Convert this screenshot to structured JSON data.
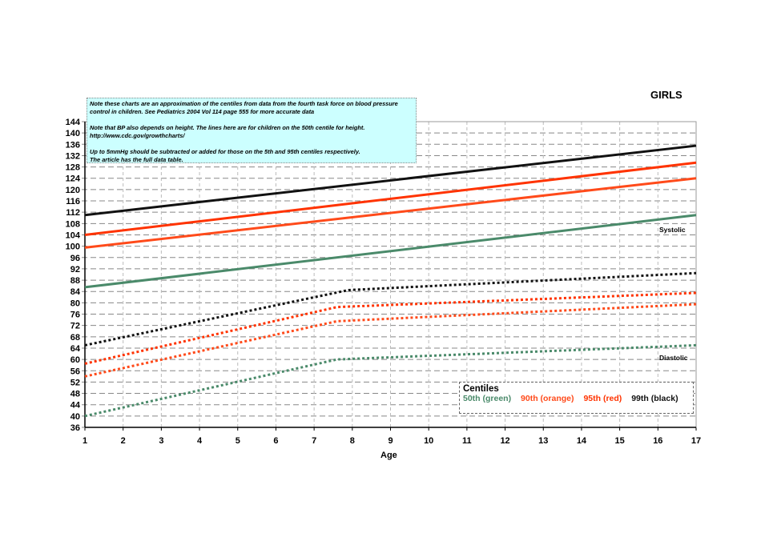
{
  "chart_data": {
    "type": "line",
    "title": "GIRLS",
    "xlabel": "Age",
    "ylabel": "",
    "xlim": [
      1,
      17
    ],
    "ylim": [
      36,
      144
    ],
    "x_ticks": [
      1,
      2,
      3,
      4,
      5,
      6,
      7,
      8,
      9,
      10,
      11,
      12,
      13,
      14,
      15,
      16,
      17
    ],
    "y_ticks": [
      36,
      40,
      44,
      48,
      52,
      56,
      60,
      64,
      68,
      72,
      76,
      80,
      84,
      88,
      92,
      96,
      100,
      104,
      108,
      112,
      116,
      120,
      124,
      128,
      132,
      136,
      140,
      144
    ],
    "grid": true,
    "legend_placement": "bottom-right",
    "legend": {
      "title": "Centiles",
      "items": [
        {
          "label": "50th (green)",
          "color": "#4a8a6a"
        },
        {
          "label": "90th (orange)",
          "color": "#ff4a1a"
        },
        {
          "label": "95th (red)",
          "color": "#ff3300"
        },
        {
          "label": "99th (black)",
          "color": "#111111"
        }
      ]
    },
    "annotations": {
      "systolic": "Systolic",
      "diastolic": "Diastolic"
    },
    "series": [
      {
        "group": "systolic",
        "centile": "99th",
        "color": "#111111",
        "style": "solid",
        "points": [
          [
            1,
            111
          ],
          [
            17,
            135.5
          ]
        ]
      },
      {
        "group": "systolic",
        "centile": "95th",
        "color": "#ff3300",
        "style": "solid",
        "points": [
          [
            1,
            104
          ],
          [
            17,
            129.5
          ]
        ]
      },
      {
        "group": "systolic",
        "centile": "90th",
        "color": "#ff4a1a",
        "style": "solid",
        "points": [
          [
            1,
            99.5
          ],
          [
            17,
            124
          ]
        ]
      },
      {
        "group": "systolic",
        "centile": "50th",
        "color": "#4a8a6a",
        "style": "solid",
        "points": [
          [
            1,
            85.5
          ],
          [
            17,
            111
          ]
        ]
      },
      {
        "group": "diastolic",
        "centile": "99th",
        "color": "#111111",
        "style": "dotted",
        "points": [
          [
            1,
            65
          ],
          [
            7.9,
            84.5
          ],
          [
            17,
            90.5
          ]
        ]
      },
      {
        "group": "diastolic",
        "centile": "95th",
        "color": "#ff3300",
        "style": "dotted",
        "points": [
          [
            1,
            58.5
          ],
          [
            7.6,
            78.5
          ],
          [
            17,
            83.5
          ]
        ]
      },
      {
        "group": "diastolic",
        "centile": "90th",
        "color": "#ff4a1a",
        "style": "dotted",
        "points": [
          [
            1,
            54
          ],
          [
            7.6,
            73.5
          ],
          [
            17,
            79.5
          ]
        ]
      },
      {
        "group": "diastolic",
        "centile": "50th",
        "color": "#4a8a6a",
        "style": "dotted",
        "points": [
          [
            1,
            40
          ],
          [
            7.6,
            60
          ],
          [
            17,
            65
          ]
        ]
      }
    ]
  },
  "note": {
    "paragraphs": [
      [
        "Note these charts are an approximation of the centiles from data from the fourth task force on blood pressure",
        "control in children. See Pediatrics 2004 Vol 114 page 555 for more accurate data"
      ],
      [
        "Note  that BP also depends on height. The lines here are for children on the 50th centile for height.",
        "http://www.cdc.gov/growthcharts/"
      ],
      [
        "Up to 5mmHg should be subtracted or added for those on the 5th and 95th centiles respectively.",
        "The article has the full data table."
      ]
    ]
  }
}
